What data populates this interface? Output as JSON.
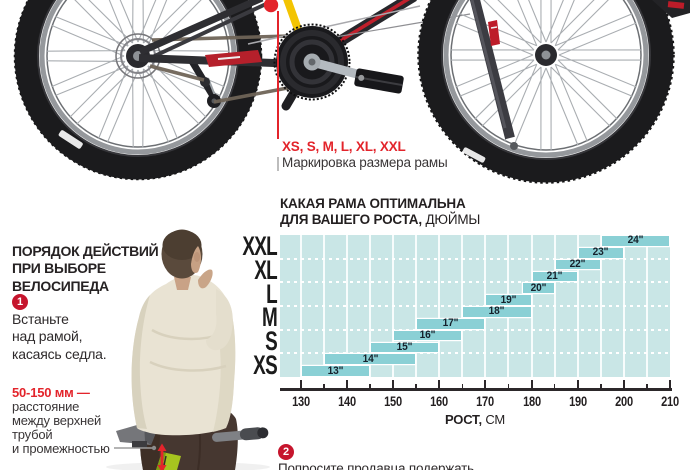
{
  "colors": {
    "accent_red": "#e3242b",
    "step_circle_red": "#c6152d",
    "seat_tube_highlight_yellow": "#f3c402",
    "frame_green": "#a6c41f"
  },
  "top_section": {
    "marking_sizes": "XS, S, M, L, XL, XXL",
    "marking_caption": "Маркировка размера рамы"
  },
  "left_column": {
    "heading_line1": "ПОРЯДОК ДЕЙСТВИЙ",
    "heading_line2": "ПРИ ВЫБОРЕ",
    "heading_line3": "ВЕЛОСИПЕДА",
    "step1": {
      "number": "1",
      "line1": "Встаньте",
      "line2": "над рамой,",
      "line3": "касаясь седла."
    },
    "gap_note": {
      "highlight": "50-150 мм —",
      "line1": "расстояние",
      "line2": "между верхней",
      "line3": "трубой",
      "line4": "и промежностью"
    }
  },
  "step2": {
    "number": "2",
    "clipped_text": "Попросите продавца подержать"
  },
  "chart_data": {
    "type": "bar",
    "orientation": "horizontal-range",
    "title": "КАКАЯ РАМА ОПТИМАЛЬНА ДЛЯ ВАШЕГО РОСТА, ДЮЙМЫ",
    "title_lines": {
      "line1": "КАКАЯ РАМА ОПТИМАЛЬНА",
      "line2_bold": "ДЛЯ ВАШЕГО РОСТА,",
      "line2_regular": " ДЮЙМЫ"
    },
    "xlabel": "РОСТ, СМ",
    "xlabel_bold": "РОСТ,",
    "xlabel_regular": " СМ",
    "xlim": [
      125.5,
      210
    ],
    "x_ticks": [
      130,
      140,
      150,
      160,
      170,
      180,
      190,
      200,
      210
    ],
    "x_minor_step": 5,
    "grid": true,
    "size_groups": [
      "XXL",
      "XL",
      "L",
      "M",
      "S",
      "XS"
    ],
    "bars": [
      {
        "label": "24\"",
        "group": "XXL",
        "from": 195,
        "to": 210
      },
      {
        "label": "23\"",
        "group": "XXL",
        "from": 190,
        "to": 200
      },
      {
        "label": "22\"",
        "group": "XL",
        "from": 185,
        "to": 195
      },
      {
        "label": "21\"",
        "group": "XL",
        "from": 180,
        "to": 190
      },
      {
        "label": "20\"",
        "group": "L",
        "from": 178,
        "to": 185
      },
      {
        "label": "19\"",
        "group": "L",
        "from": 170,
        "to": 180
      },
      {
        "label": "18\"",
        "group": "M",
        "from": 165,
        "to": 180
      },
      {
        "label": "17\"",
        "group": "M",
        "from": 155,
        "to": 170
      },
      {
        "label": "16\"",
        "group": "S",
        "from": 150,
        "to": 165
      },
      {
        "label": "15\"",
        "group": "S",
        "from": 145,
        "to": 160
      },
      {
        "label": "14\"",
        "group": "XS",
        "from": 135,
        "to": 155
      },
      {
        "label": "13\"",
        "group": "XS",
        "from": 130,
        "to": 145
      }
    ],
    "colors": {
      "plot_bg": "#c9e6e6",
      "bar": "#8ad0d5",
      "grid": "#ffffff",
      "bar_label": "#16212b",
      "axis": "#2c282a",
      "group_label": "#1b1b1b"
    }
  }
}
